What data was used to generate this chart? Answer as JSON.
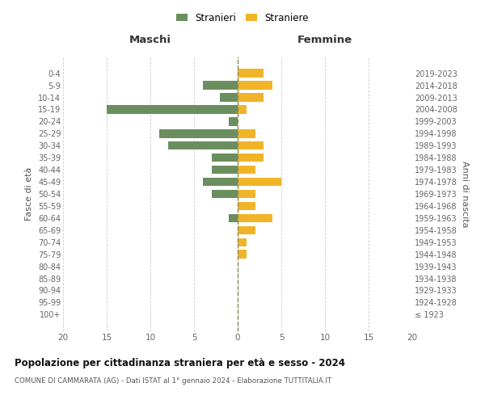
{
  "age_groups": [
    "100+",
    "95-99",
    "90-94",
    "85-89",
    "80-84",
    "75-79",
    "70-74",
    "65-69",
    "60-64",
    "55-59",
    "50-54",
    "45-49",
    "40-44",
    "35-39",
    "30-34",
    "25-29",
    "20-24",
    "15-19",
    "10-14",
    "5-9",
    "0-4"
  ],
  "birth_years": [
    "≤ 1923",
    "1924-1928",
    "1929-1933",
    "1934-1938",
    "1939-1943",
    "1944-1948",
    "1949-1953",
    "1954-1958",
    "1959-1963",
    "1964-1968",
    "1969-1973",
    "1974-1978",
    "1979-1983",
    "1984-1988",
    "1989-1993",
    "1994-1998",
    "1999-2003",
    "2004-2008",
    "2009-2013",
    "2014-2018",
    "2019-2023"
  ],
  "maschi": [
    0,
    0,
    0,
    0,
    0,
    0,
    0,
    0,
    1,
    0,
    3,
    4,
    3,
    3,
    8,
    9,
    1,
    15,
    2,
    4,
    0
  ],
  "femmine": [
    0,
    0,
    0,
    0,
    0,
    1,
    1,
    2,
    4,
    2,
    2,
    5,
    2,
    3,
    3,
    2,
    0,
    1,
    3,
    4,
    3
  ],
  "maschi_color": "#6b8e5e",
  "femmine_color": "#f0b429",
  "bg_color": "#ffffff",
  "grid_color": "#cccccc",
  "centerline_color": "#888855",
  "title": "Popolazione per cittadinanza straniera per età e sesso - 2024",
  "subtitle": "COMUNE DI CAMMARATA (AG) - Dati ISTAT al 1° gennaio 2024 - Elaborazione TUTTITALIA.IT",
  "xlabel_left": "Maschi",
  "xlabel_right": "Femmine",
  "ylabel_left": "Fasce di età",
  "ylabel_right": "Anni di nascita",
  "legend_stranieri": "Stranieri",
  "legend_straniere": "Straniere",
  "xlim": 20
}
